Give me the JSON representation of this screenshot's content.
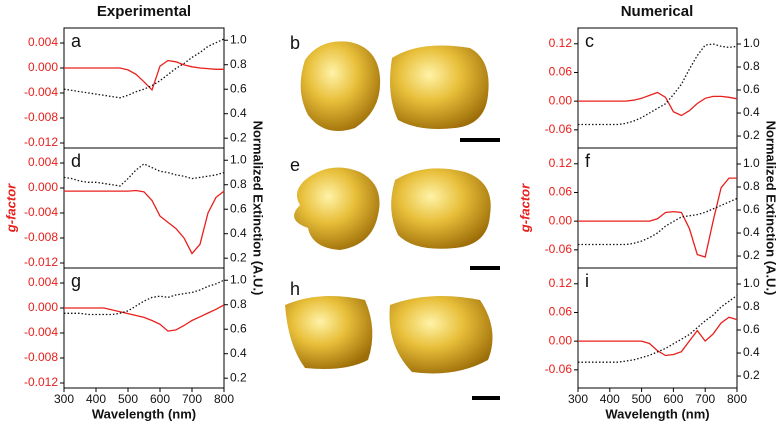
{
  "headings": {
    "left": "Experimental",
    "right": "Numerical"
  },
  "images": [
    {
      "label": "b"
    },
    {
      "label": "e"
    },
    {
      "label": "h"
    }
  ],
  "chart_data": [
    {
      "type": "line",
      "label": "a",
      "x": [
        300,
        325,
        350,
        375,
        400,
        425,
        450,
        475,
        500,
        525,
        550,
        575,
        600,
        625,
        650,
        675,
        700,
        725,
        750,
        775,
        800
      ],
      "xlim": [
        300,
        800
      ],
      "ylim": [
        -0.0128,
        0.0064
      ],
      "yticks": [
        0.004,
        {
          "value": 0,
          "label": "0.000"
        },
        -0.004,
        -0.008,
        -0.012
      ],
      "y2lim": [
        0.12,
        1.1
      ],
      "y2ticks": [
        {
          "value": 1,
          "label": "1.0"
        },
        0.8,
        0.6,
        0.4,
        0.2
      ],
      "series": [
        {
          "color": "#e8201c",
          "axis": "y",
          "values": [
            0,
            0,
            0,
            0,
            0,
            0,
            0,
            0,
            -0.0003,
            -0.001,
            -0.0022,
            -0.0035,
            0.0003,
            0.0012,
            0.001,
            0.0005,
            0.0002,
            0,
            -0.0001,
            -0.0002,
            -0.0002
          ]
        },
        {
          "color": "#111111",
          "axis": "y2",
          "dotted": true,
          "values": [
            0.6,
            0.59,
            0.58,
            0.57,
            0.56,
            0.55,
            0.54,
            0.53,
            0.55,
            0.58,
            0.6,
            0.63,
            0.67,
            0.72,
            0.77,
            0.81,
            0.86,
            0.9,
            0.95,
            0.98,
            1.01
          ]
        }
      ]
    },
    {
      "type": "line",
      "label": "d",
      "ylabel": "g-factor",
      "y2label": "Normalized Extinction (A.U.)",
      "x": [
        300,
        325,
        350,
        375,
        400,
        425,
        450,
        475,
        500,
        525,
        550,
        575,
        600,
        625,
        650,
        675,
        700,
        725,
        750,
        775,
        800
      ],
      "xlim": [
        300,
        800
      ],
      "ylim": [
        -0.0128,
        0.0064
      ],
      "yticks": [
        0.004,
        {
          "value": 0,
          "label": "0.000"
        },
        -0.004,
        -0.008,
        -0.012
      ],
      "y2lim": [
        0.12,
        1.1
      ],
      "y2ticks": [
        {
          "value": 1,
          "label": "1.0"
        },
        0.8,
        0.6,
        0.4,
        0.2
      ],
      "series": [
        {
          "color": "#e8201c",
          "axis": "y",
          "values": [
            -0.0005,
            -0.0005,
            -0.0005,
            -0.0005,
            -0.0005,
            -0.0005,
            -0.0005,
            -0.0005,
            -0.0005,
            -0.0004,
            -0.0006,
            -0.002,
            -0.0045,
            -0.0055,
            -0.0065,
            -0.008,
            -0.0105,
            -0.009,
            -0.004,
            -0.0015,
            -0.0005
          ]
        },
        {
          "color": "#111111",
          "axis": "y2",
          "dotted": true,
          "values": [
            0.86,
            0.85,
            0.83,
            0.82,
            0.82,
            0.81,
            0.8,
            0.79,
            0.85,
            0.92,
            0.97,
            0.94,
            0.91,
            0.9,
            0.88,
            0.87,
            0.85,
            0.86,
            0.87,
            0.88,
            0.9
          ]
        }
      ]
    },
    {
      "type": "line",
      "label": "g",
      "xlabel": "Wavelength (nm)",
      "x": [
        300,
        325,
        350,
        375,
        400,
        425,
        450,
        475,
        500,
        525,
        550,
        575,
        600,
        625,
        650,
        675,
        700,
        725,
        750,
        775,
        800
      ],
      "xlim": [
        300,
        800
      ],
      "xticks": [
        300,
        400,
        500,
        600,
        700,
        800
      ],
      "ylim": [
        -0.0128,
        0.0064
      ],
      "yticks": [
        0.004,
        {
          "value": 0,
          "label": "0.000"
        },
        -0.004,
        -0.008,
        -0.012
      ],
      "y2lim": [
        0.12,
        1.1
      ],
      "y2ticks": [
        {
          "value": 1,
          "label": "1.0"
        },
        0.8,
        0.6,
        0.4,
        0.2
      ],
      "series": [
        {
          "color": "#e8201c",
          "axis": "y",
          "values": [
            0,
            0,
            0,
            0,
            0,
            0,
            -0.0003,
            -0.0006,
            -0.0009,
            -0.0012,
            -0.0015,
            -0.002,
            -0.0026,
            -0.0037,
            -0.0035,
            -0.0028,
            -0.002,
            -0.0014,
            -0.0008,
            -0.0002,
            0.0005
          ]
        },
        {
          "color": "#111111",
          "axis": "y2",
          "dotted": true,
          "values": [
            0.73,
            0.73,
            0.73,
            0.72,
            0.72,
            0.72,
            0.72,
            0.73,
            0.75,
            0.79,
            0.83,
            0.86,
            0.87,
            0.86,
            0.88,
            0.89,
            0.9,
            0.92,
            0.95,
            0.97,
            1.0
          ]
        }
      ]
    },
    {
      "type": "line",
      "label": "c",
      "x": [
        300,
        325,
        350,
        375,
        400,
        425,
        450,
        475,
        500,
        525,
        550,
        575,
        600,
        625,
        650,
        675,
        700,
        725,
        750,
        775,
        800
      ],
      "xlim": [
        300,
        800
      ],
      "ylim": [
        -0.098,
        0.153
      ],
      "yticks": [
        0.12,
        0.06,
        {
          "value": 0,
          "label": "0.00"
        },
        -0.06
      ],
      "y2lim": [
        0.096,
        1.139
      ],
      "y2ticks": [
        {
          "value": 1,
          "label": "1.0"
        },
        0.8,
        0.6,
        0.4,
        0.2
      ],
      "series": [
        {
          "color": "#e8201c",
          "axis": "y",
          "values": [
            0,
            0,
            0,
            0,
            0,
            0,
            0,
            0.002,
            0.006,
            0.012,
            0.018,
            0.008,
            -0.022,
            -0.03,
            -0.02,
            -0.005,
            0.006,
            0.01,
            0.01,
            0.008,
            0.005
          ]
        },
        {
          "color": "#111111",
          "axis": "y2",
          "dotted": true,
          "values": [
            0.3,
            0.3,
            0.3,
            0.3,
            0.3,
            0.3,
            0.31,
            0.33,
            0.36,
            0.4,
            0.44,
            0.48,
            0.56,
            0.65,
            0.78,
            0.9,
            0.99,
            1.0,
            0.98,
            0.97,
            0.98
          ]
        }
      ]
    },
    {
      "type": "line",
      "label": "f",
      "ylabel": "g-factor",
      "y2label": "Normalized Extinction (A.U.)",
      "x": [
        300,
        325,
        350,
        375,
        400,
        425,
        450,
        475,
        500,
        525,
        550,
        575,
        600,
        625,
        650,
        675,
        700,
        725,
        750,
        775,
        800
      ],
      "xlim": [
        300,
        800
      ],
      "ylim": [
        -0.098,
        0.153
      ],
      "yticks": [
        0.12,
        0.06,
        {
          "value": 0,
          "label": "0.00"
        },
        -0.06
      ],
      "y2lim": [
        0.096,
        1.139
      ],
      "y2ticks": [
        {
          "value": 1,
          "label": "1.0"
        },
        0.8,
        0.6,
        0.4,
        0.2
      ],
      "series": [
        {
          "color": "#e8201c",
          "axis": "y",
          "values": [
            0,
            0,
            0,
            0,
            0,
            0,
            0,
            0,
            0,
            0,
            0.005,
            0.018,
            0.02,
            0.018,
            -0.015,
            -0.07,
            -0.075,
            0.0,
            0.07,
            0.09,
            0.09
          ]
        },
        {
          "color": "#111111",
          "axis": "y2",
          "dotted": true,
          "values": [
            0.3,
            0.3,
            0.3,
            0.3,
            0.3,
            0.3,
            0.3,
            0.31,
            0.33,
            0.36,
            0.4,
            0.46,
            0.5,
            0.54,
            0.55,
            0.56,
            0.58,
            0.61,
            0.64,
            0.67,
            0.7
          ]
        }
      ]
    },
    {
      "type": "line",
      "label": "i",
      "xlabel": "Wavelength (nm)",
      "x": [
        300,
        325,
        350,
        375,
        400,
        425,
        450,
        475,
        500,
        525,
        550,
        575,
        600,
        625,
        650,
        675,
        700,
        725,
        750,
        775,
        800
      ],
      "xlim": [
        300,
        800
      ],
      "xticks": [
        300,
        400,
        500,
        600,
        700,
        800
      ],
      "ylim": [
        -0.098,
        0.153
      ],
      "yticks": [
        0.12,
        0.06,
        {
          "value": 0,
          "label": "0.00"
        },
        -0.06
      ],
      "y2lim": [
        0.096,
        1.139
      ],
      "y2ticks": [
        {
          "value": 1,
          "label": "1.0"
        },
        0.8,
        0.6,
        0.4,
        0.2
      ],
      "series": [
        {
          "color": "#e8201c",
          "axis": "y",
          "values": [
            0,
            0,
            0,
            0,
            0,
            0,
            0,
            0,
            0,
            -0.005,
            -0.02,
            -0.03,
            -0.028,
            -0.022,
            0.0,
            0.022,
            0.0,
            0.015,
            0.038,
            0.05,
            0.045
          ]
        },
        {
          "color": "#111111",
          "axis": "y2",
          "dotted": true,
          "values": [
            0.32,
            0.32,
            0.32,
            0.32,
            0.32,
            0.32,
            0.33,
            0.34,
            0.36,
            0.38,
            0.41,
            0.44,
            0.48,
            0.52,
            0.56,
            0.62,
            0.68,
            0.73,
            0.8,
            0.85,
            0.9
          ]
        }
      ]
    }
  ]
}
